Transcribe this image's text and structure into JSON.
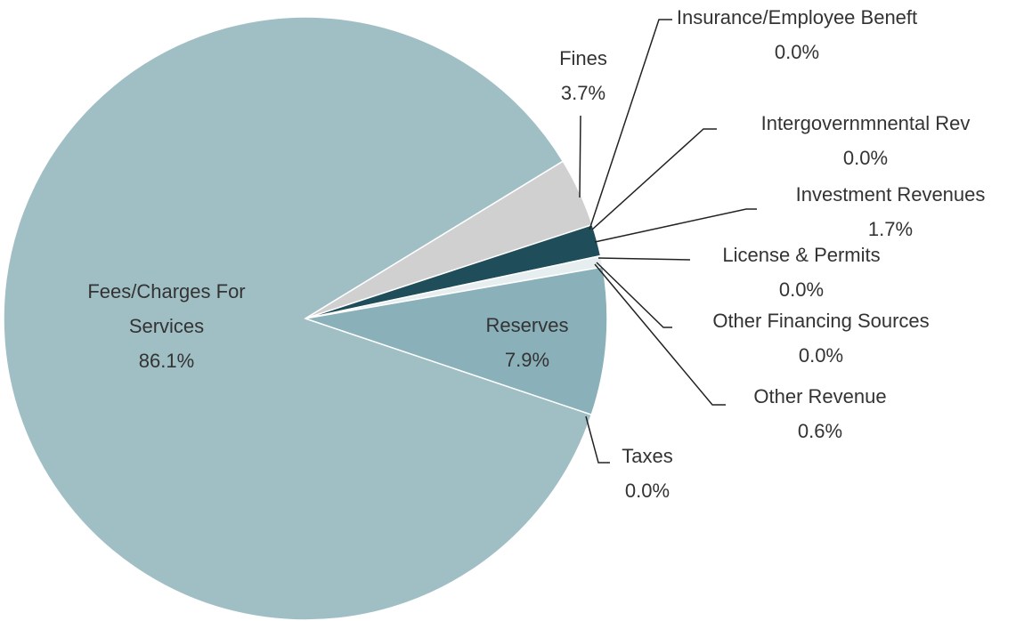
{
  "chart_data": {
    "type": "pie",
    "categories": [
      "Fees/Charges For Services",
      "Fines",
      "Insurance/Employee Beneft",
      "Intergovernmnental Rev",
      "Investment Revenues",
      "License & Permits",
      "Other Financing Sources",
      "Other Revenue",
      "Reserves",
      "Taxes"
    ],
    "values": [
      86.1,
      3.7,
      0.0,
      0.0,
      1.7,
      0.0,
      0.0,
      0.6,
      7.9,
      0.0
    ],
    "value_labels": [
      "86.1%",
      "3.7%",
      "0.0%",
      "0.0%",
      "1.7%",
      "0.0%",
      "0.0%",
      "0.6%",
      "7.9%",
      "0.0%"
    ],
    "colors": [
      "#a0bfc4",
      "#d0d0d0",
      "#5f7f86",
      "#3d6670",
      "#1f4e5a",
      "#b7cdd1",
      "#c9d9dc",
      "#e6eef0",
      "#8ab0b9",
      "#7fa3ab"
    ],
    "start_angle": 108.6
  }
}
